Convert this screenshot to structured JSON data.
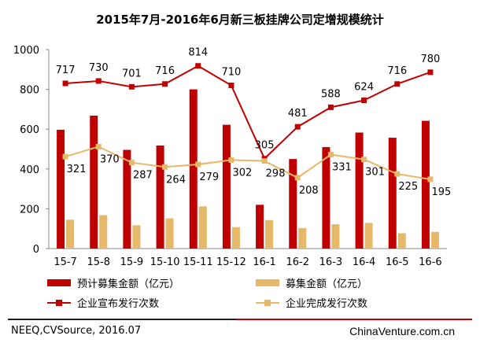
{
  "chart_data": {
    "type": "bar",
    "title": "2015年7月-2016年6月新三板挂牌公司定增规模统计",
    "categories": [
      "15-7",
      "15-8",
      "15-9",
      "15-10",
      "15-11",
      "15-12",
      "16-1",
      "16-2",
      "16-3",
      "16-4",
      "16-5",
      "16-6"
    ],
    "ylim": [
      0,
      1000
    ],
    "yticks": [
      "0",
      "200",
      "400",
      "600",
      "800",
      "1000"
    ],
    "grid": false,
    "legend_position": "bottom",
    "series": [
      {
        "name": "预计募集金额（亿元）",
        "type": "bar",
        "color": "#c00000",
        "values": [
          597,
          668,
          496,
          518,
          800,
          622,
          220,
          450,
          510,
          583,
          557,
          642
        ]
      },
      {
        "name": "募集金额（亿元）",
        "type": "bar",
        "color": "#e6b86a",
        "values": [
          145,
          168,
          117,
          152,
          212,
          108,
          143,
          103,
          122,
          129,
          77,
          84
        ]
      },
      {
        "name": "企业宣布发行次数",
        "type": "line",
        "color": "#c00000",
        "values": [
          717,
          730,
          701,
          716,
          814,
          710,
          305,
          481,
          588,
          624,
          716,
          780
        ],
        "plot_values": [
          830,
          842,
          813,
          827,
          918,
          820,
          452,
          612,
          710,
          745,
          827,
          886
        ]
      },
      {
        "name": "企业完成发行次数",
        "type": "line",
        "color": "#e6b86a",
        "values": [
          321,
          370,
          287,
          264,
          279,
          302,
          298,
          208,
          331,
          301,
          225,
          195
        ],
        "plot_values": [
          462,
          512,
          432,
          410,
          423,
          445,
          440,
          356,
          472,
          448,
          375,
          348
        ]
      }
    ]
  },
  "colors": {
    "accent_red": "#c00000",
    "accent_gold": "#e6b86a",
    "divider_dark": "#1f1f1f"
  },
  "footer": {
    "source": "NEEQ,CVSource, 2016.07",
    "brand": "ChinaVenture.com.cn"
  }
}
